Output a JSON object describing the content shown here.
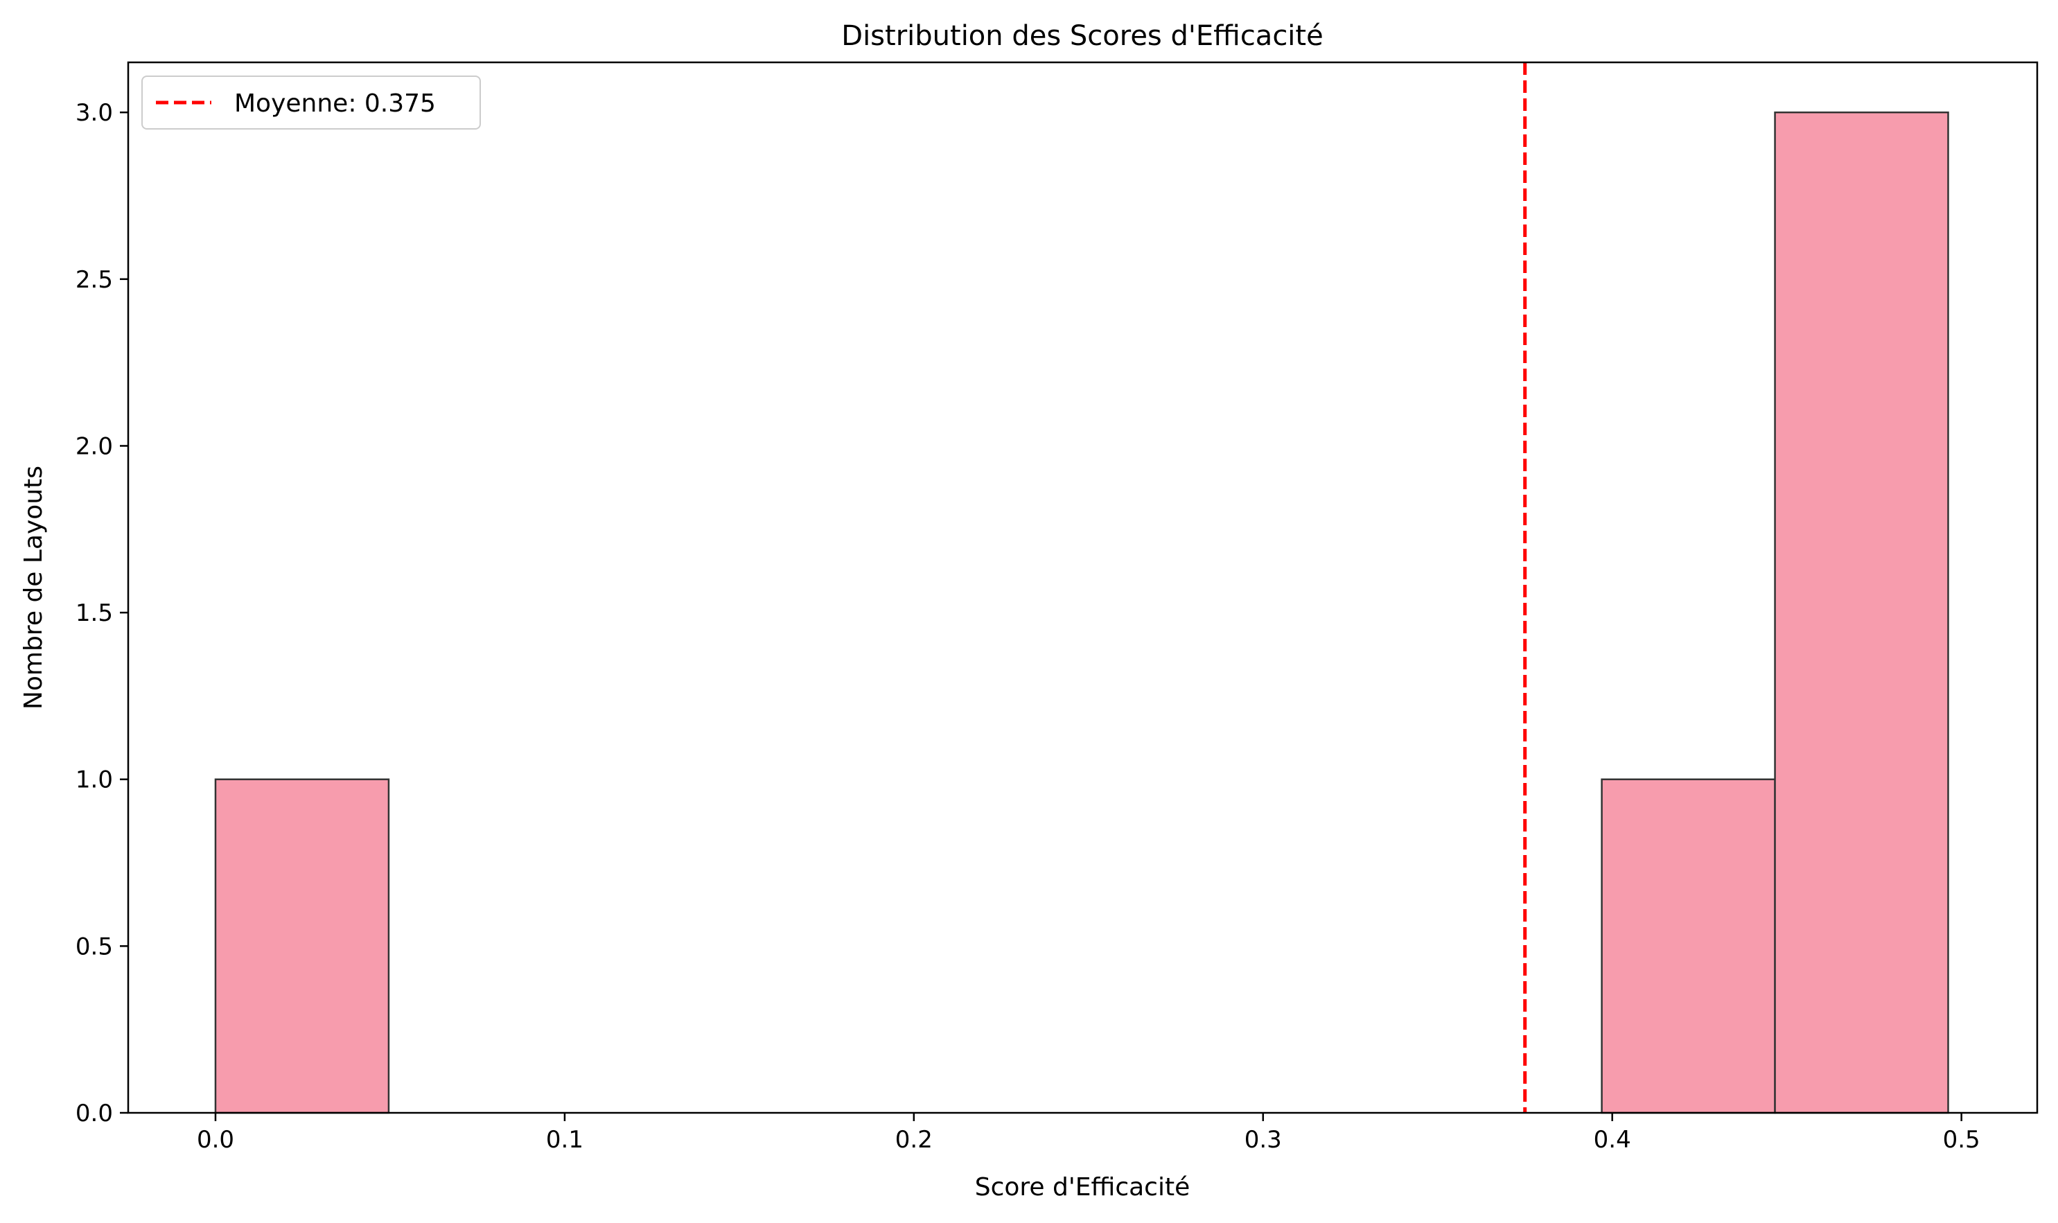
{
  "chart_data": {
    "type": "histogram",
    "title": "Distribution des Scores d'Efficacité",
    "xlabel": "Score d'Efficacité",
    "ylabel": "Nombre de Layouts",
    "xlim": [
      -0.025,
      0.5217
    ],
    "ylim": [
      0,
      3.15
    ],
    "xticks": [
      0.0,
      0.1,
      0.2,
      0.3,
      0.4,
      0.5
    ],
    "xtick_labels": [
      "0.0",
      "0.1",
      "0.2",
      "0.3",
      "0.4",
      "0.5"
    ],
    "yticks": [
      0.0,
      0.5,
      1.0,
      1.5,
      2.0,
      2.5,
      3.0
    ],
    "ytick_labels": [
      "0.0",
      "0.5",
      "1.0",
      "1.5",
      "2.0",
      "2.5",
      "3.0"
    ],
    "bins": [
      {
        "x0": 0.0,
        "x1": 0.0496,
        "count": 1
      },
      {
        "x0": 0.397,
        "x1": 0.4466,
        "count": 1
      },
      {
        "x0": 0.4466,
        "x1": 0.4962,
        "count": 3
      }
    ],
    "bar_color": "#f79cad",
    "bar_edge_color": "#333333",
    "mean_line": {
      "x": 0.375,
      "label": "Moyenne: 0.375",
      "color": "#ff0000",
      "style": "dashed"
    },
    "legend": {
      "position": "top-left",
      "entries": [
        "Moyenne: 0.375"
      ]
    },
    "grid": false
  }
}
